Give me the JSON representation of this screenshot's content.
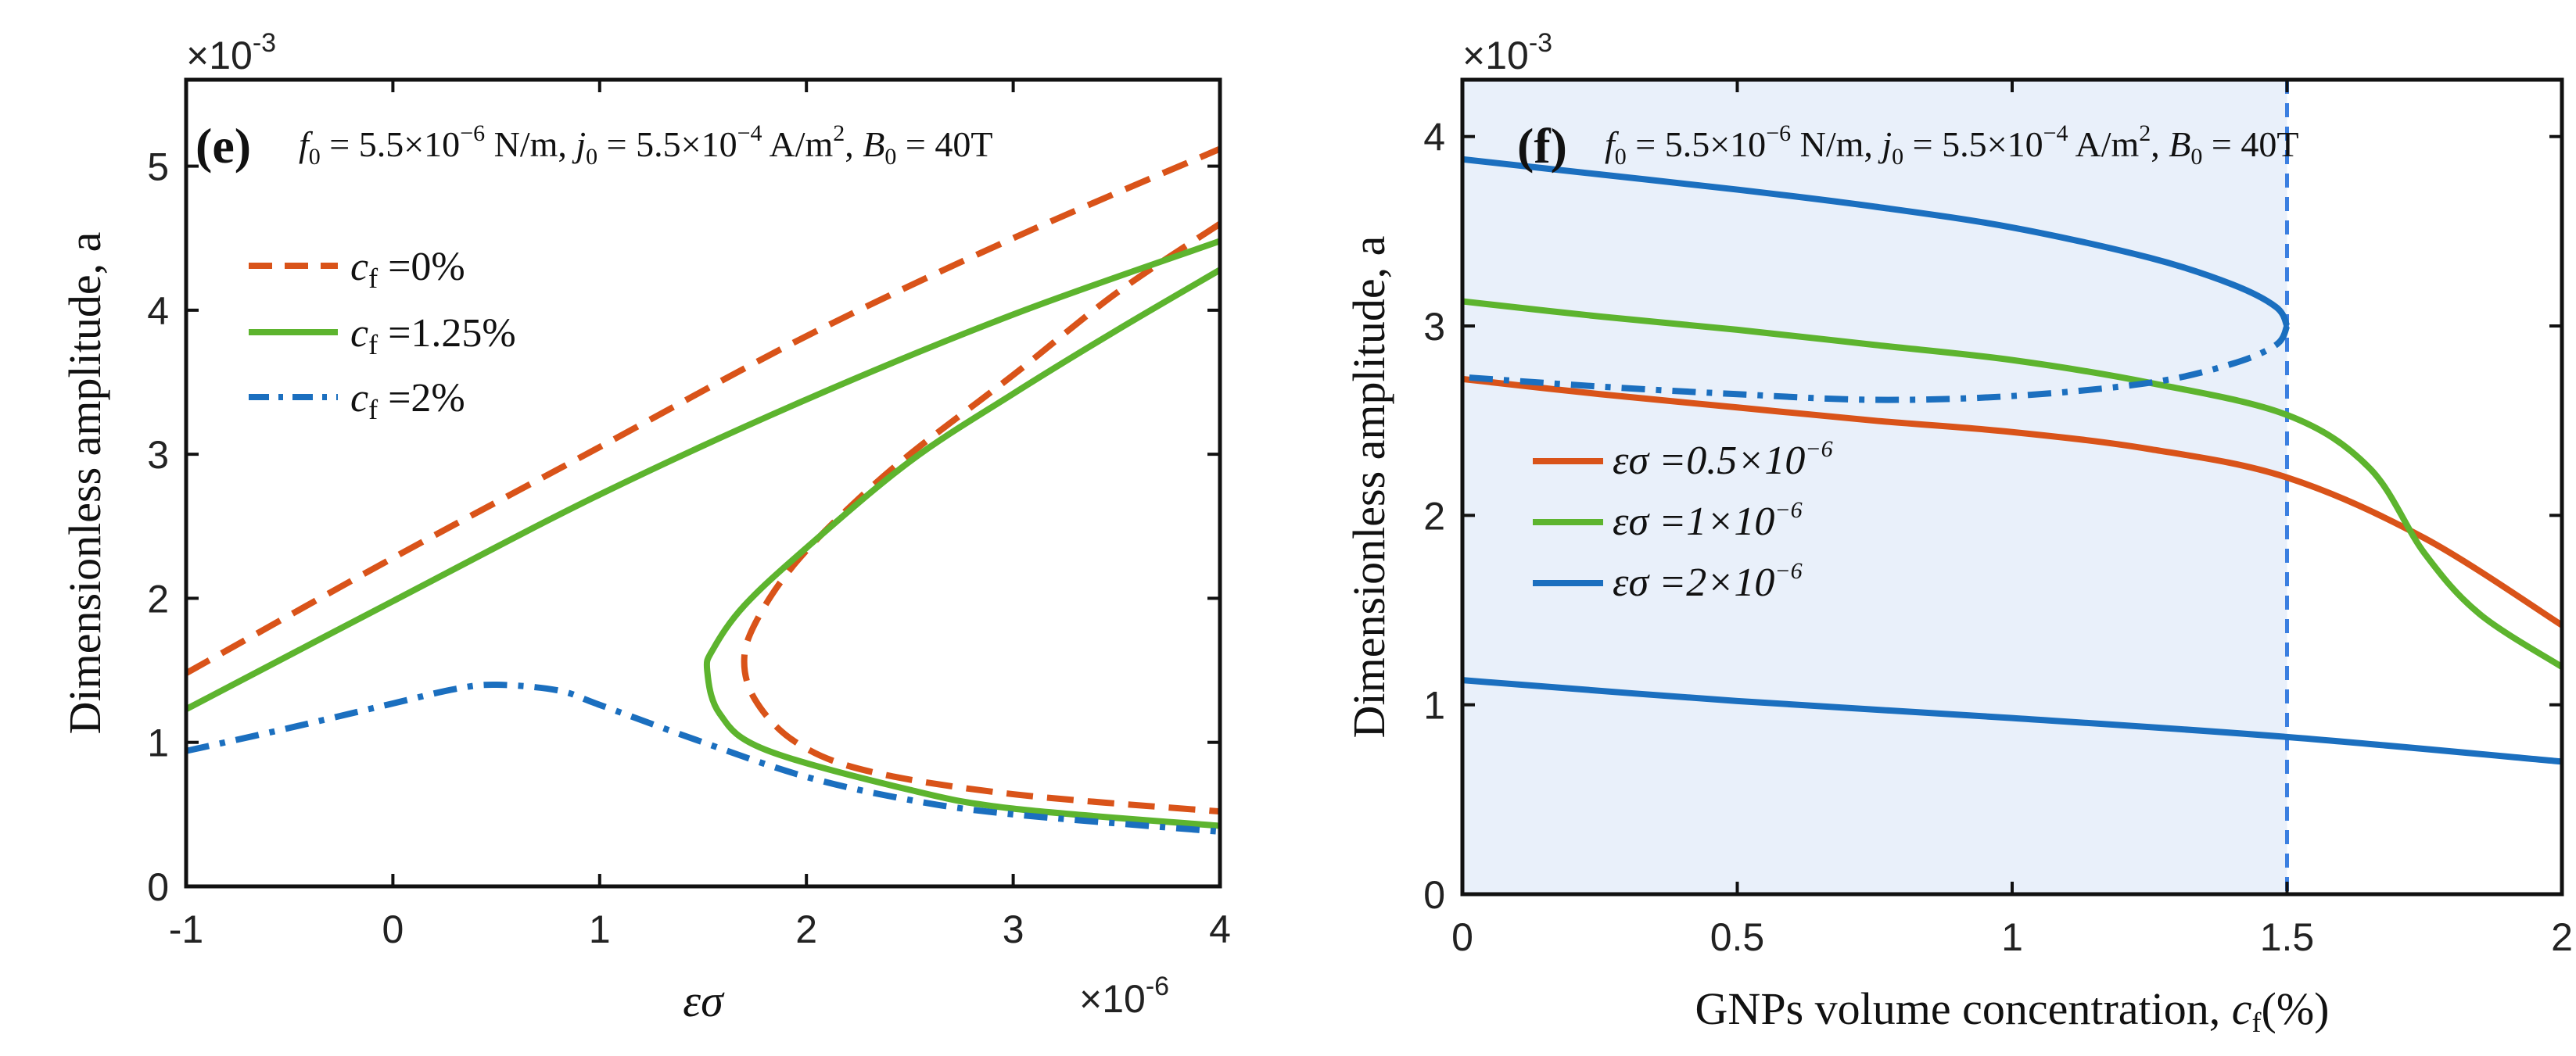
{
  "colors": {
    "orange": "#D95319",
    "green": "#5DB42E",
    "blue": "#1B6FBF",
    "shade": "#E9F0FA",
    "vline": "#3B7FE0",
    "axis": "#111111"
  },
  "chart_data": [
    {
      "id": "e",
      "type": "line",
      "panel_label": "(e)",
      "params": {
        "f0": "5.5×10",
        "f0_exp": "−6",
        "f0_unit": "N/m",
        "j0": "5.5×10",
        "j0_exp": "−4",
        "j0_unit": "A/m",
        "j0_unit_sup": "2",
        "B0": "40T"
      },
      "xlabel": "εσ",
      "ylabel": "Dimensionless amplitude, a",
      "x_multiplier": "×10",
      "x_multiplier_exp": "-6",
      "y_multiplier": "×10",
      "y_multiplier_exp": "-3",
      "xlim": [
        -1,
        4
      ],
      "ylim": [
        0,
        5.6
      ],
      "xticks": [
        -1,
        0,
        1,
        2,
        3,
        4
      ],
      "yticks": [
        0,
        1,
        2,
        3,
        4,
        5
      ],
      "legend": {
        "position": "upper-left",
        "entries": [
          {
            "label_prefix": "c",
            "label_sub": "f",
            "label_rest": " =0%",
            "color": "#D95319",
            "style": "dashed"
          },
          {
            "label_prefix": "c",
            "label_sub": "f",
            "label_rest": " =1.25%",
            "color": "#5DB42E",
            "style": "solid"
          },
          {
            "label_prefix": "c",
            "label_sub": "f",
            "label_rest": " =2%",
            "color": "#1B6FBF",
            "style": "dashdot"
          }
        ]
      },
      "series": [
        {
          "name": "cf =0% upper",
          "color": "#D95319",
          "style": "dashed",
          "points": [
            [
              -1,
              1.48
            ],
            [
              0,
              2.28
            ],
            [
              1,
              3.05
            ],
            [
              2,
              3.82
            ],
            [
              3,
              4.5
            ],
            [
              4,
              5.12
            ]
          ]
        },
        {
          "name": "cf =0% lower",
          "color": "#D95319",
          "style": "dashed",
          "points": [
            [
              4,
              4.6
            ],
            [
              3.5,
              4.12
            ],
            [
              3,
              3.55
            ],
            [
              2.5,
              3.0
            ],
            [
              2.2,
              2.62
            ],
            [
              1.95,
              2.25
            ],
            [
              1.78,
              1.9
            ],
            [
              1.7,
              1.6
            ],
            [
              1.75,
              1.3
            ],
            [
              1.95,
              1.0
            ],
            [
              2.3,
              0.8
            ],
            [
              3,
              0.64
            ],
            [
              4,
              0.52
            ]
          ]
        },
        {
          "name": "cf =1.25% upper",
          "color": "#5DB42E",
          "style": "solid",
          "points": [
            [
              -1,
              1.23
            ],
            [
              0,
              1.98
            ],
            [
              1,
              2.72
            ],
            [
              2,
              3.38
            ],
            [
              3,
              3.97
            ],
            [
              4,
              4.48
            ]
          ]
        },
        {
          "name": "cf =1.25% lower",
          "color": "#5DB42E",
          "style": "solid",
          "points": [
            [
              4,
              4.28
            ],
            [
              3.5,
              3.86
            ],
            [
              3,
              3.42
            ],
            [
              2.5,
              2.95
            ],
            [
              2,
              2.35
            ],
            [
              1.7,
              1.95
            ],
            [
              1.55,
              1.65
            ],
            [
              1.52,
              1.5
            ],
            [
              1.58,
              1.2
            ],
            [
              1.8,
              0.95
            ],
            [
              2.5,
              0.67
            ],
            [
              3,
              0.54
            ],
            [
              4,
              0.42
            ]
          ]
        },
        {
          "name": "cf =2%",
          "color": "#1B6FBF",
          "style": "dashdot",
          "points": [
            [
              -1,
              0.94
            ],
            [
              -0.5,
              1.1
            ],
            [
              0,
              1.27
            ],
            [
              0.3,
              1.37
            ],
            [
              0.5,
              1.4
            ],
            [
              0.8,
              1.36
            ],
            [
              1,
              1.26
            ],
            [
              1.5,
              1.0
            ],
            [
              2,
              0.76
            ],
            [
              2.5,
              0.6
            ],
            [
              3,
              0.5
            ],
            [
              4,
              0.38
            ]
          ]
        }
      ]
    },
    {
      "id": "f",
      "type": "line",
      "panel_label": "(f)",
      "params": {
        "f0": "5.5×10",
        "f0_exp": "−6",
        "f0_unit": "N/m",
        "j0": "5.5×10",
        "j0_exp": "−4",
        "j0_unit": "A/m",
        "j0_unit_sup": "2",
        "B0": "40T"
      },
      "xlabel_prefix": "GNPs volume concentration, ",
      "xlabel_var": "c",
      "xlabel_sub": "f",
      "xlabel_rest": "(%)",
      "ylabel": "Dimensionless amplitude, a",
      "y_multiplier": "×10",
      "y_multiplier_exp": "-3",
      "xlim": [
        0,
        2
      ],
      "ylim": [
        0,
        4.3
      ],
      "xticks": [
        "0",
        "0.5",
        "1",
        "1.5",
        "2"
      ],
      "yticks": [
        0,
        1,
        2,
        3,
        4
      ],
      "shaded_region_x": [
        0,
        1.5
      ],
      "vertical_line_x": 1.5,
      "legend": {
        "position": "center-left",
        "entries": [
          {
            "label_prefix": "εσ =0.5×10",
            "label_sup": "−6",
            "color": "#D95319",
            "style": "solid"
          },
          {
            "label_prefix": "εσ =1×10",
            "label_sup": "−6",
            "color": "#5DB42E",
            "style": "solid"
          },
          {
            "label_prefix": "εσ =2×10",
            "label_sup": "−6",
            "color": "#1B6FBF",
            "style": "solid"
          }
        ]
      },
      "series": [
        {
          "name": "εσ =0.5×10^-6",
          "color": "#D95319",
          "style": "solid",
          "points": [
            [
              0,
              2.72
            ],
            [
              0.25,
              2.64
            ],
            [
              0.5,
              2.57
            ],
            [
              0.75,
              2.5
            ],
            [
              1,
              2.44
            ],
            [
              1.25,
              2.35
            ],
            [
              1.5,
              2.2
            ],
            [
              1.75,
              1.88
            ],
            [
              2,
              1.42
            ]
          ]
        },
        {
          "name": "εσ =1×10^-6",
          "color": "#5DB42E",
          "style": "solid",
          "points": [
            [
              0,
              3.13
            ],
            [
              0.25,
              3.05
            ],
            [
              0.5,
              2.98
            ],
            [
              0.75,
              2.9
            ],
            [
              1,
              2.82
            ],
            [
              1.25,
              2.7
            ],
            [
              1.5,
              2.53
            ],
            [
              1.65,
              2.25
            ],
            [
              1.75,
              1.8
            ],
            [
              1.85,
              1.48
            ],
            [
              2,
              1.2
            ]
          ]
        },
        {
          "name": "εσ =2×10^-6 upper",
          "color": "#1B6FBF",
          "style": "solid",
          "points": [
            [
              0,
              3.88
            ],
            [
              0.25,
              3.8
            ],
            [
              0.5,
              3.72
            ],
            [
              0.75,
              3.63
            ],
            [
              1,
              3.52
            ],
            [
              1.25,
              3.36
            ],
            [
              1.4,
              3.22
            ],
            [
              1.48,
              3.1
            ],
            [
              1.5,
              3.0
            ]
          ]
        },
        {
          "name": "εσ =2×10^-6 middle",
          "color": "#1B6FBF",
          "style": "dashdot",
          "points": [
            [
              1.5,
              3.0
            ],
            [
              1.48,
              2.9
            ],
            [
              1.4,
              2.8
            ],
            [
              1.25,
              2.7
            ],
            [
              1,
              2.63
            ],
            [
              0.75,
              2.61
            ],
            [
              0.5,
              2.64
            ],
            [
              0.25,
              2.68
            ],
            [
              0,
              2.73
            ]
          ]
        },
        {
          "name": "εσ =2×10^-6 lower",
          "color": "#1B6FBF",
          "style": "solid",
          "points": [
            [
              0,
              1.13
            ],
            [
              0.5,
              1.02
            ],
            [
              1,
              0.93
            ],
            [
              1.5,
              0.83
            ],
            [
              2,
              0.7
            ]
          ]
        }
      ]
    }
  ]
}
